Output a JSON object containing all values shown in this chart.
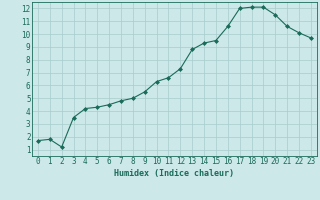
{
  "x": [
    0,
    1,
    2,
    3,
    4,
    5,
    6,
    7,
    8,
    9,
    10,
    11,
    12,
    13,
    14,
    15,
    16,
    17,
    18,
    19,
    20,
    21,
    22,
    23
  ],
  "y": [
    1.7,
    1.8,
    1.2,
    3.5,
    4.2,
    4.3,
    4.5,
    4.8,
    5.0,
    5.5,
    6.3,
    6.6,
    7.3,
    8.8,
    9.3,
    9.5,
    10.6,
    12.0,
    12.1,
    12.1,
    11.5,
    10.6,
    10.1,
    9.7
  ],
  "line_color": "#1a6b5a",
  "marker": "D",
  "marker_size": 2.0,
  "bg_color": "#cce8e8",
  "grid_color": "#a8cccc",
  "xlabel": "Humidex (Indice chaleur)",
  "xlim": [
    -0.5,
    23.5
  ],
  "ylim": [
    0.5,
    12.5
  ],
  "xticks": [
    0,
    1,
    2,
    3,
    4,
    5,
    6,
    7,
    8,
    9,
    10,
    11,
    12,
    13,
    14,
    15,
    16,
    17,
    18,
    19,
    20,
    21,
    22,
    23
  ],
  "yticks": [
    1,
    2,
    3,
    4,
    5,
    6,
    7,
    8,
    9,
    10,
    11,
    12
  ],
  "xlabel_fontsize": 6.0,
  "tick_fontsize": 5.5
}
